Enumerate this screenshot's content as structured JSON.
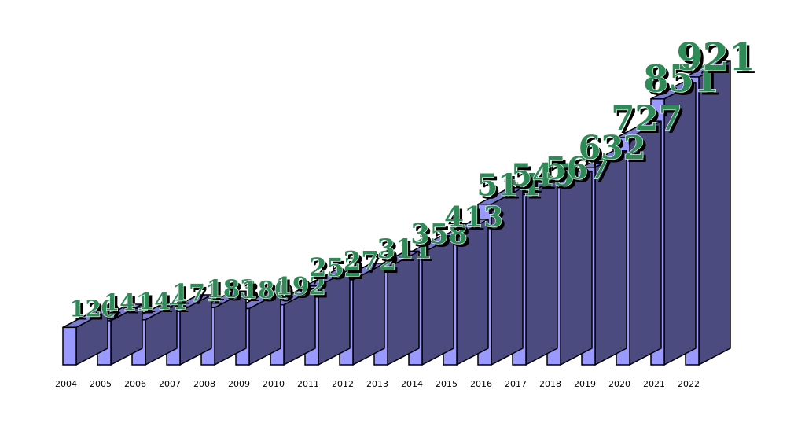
{
  "colors": {
    "bar_front": "#9999ff",
    "bar_side": "#4b4b80",
    "bar_top": "#7b7bd0",
    "value_label": "#2e8b57",
    "value_shadow": "#000000",
    "outline": "#000000"
  },
  "chart_data": {
    "type": "bar",
    "style": "3d",
    "title": "",
    "xlabel": "",
    "ylabel": "",
    "grid": false,
    "legend": "none",
    "ylim": [
      0,
      921
    ],
    "categories": [
      "2004",
      "2005",
      "2006",
      "2007",
      "2008",
      "2009",
      "2010",
      "2011",
      "2012",
      "2013",
      "2014",
      "2015",
      "2016",
      "2017",
      "2018",
      "2019",
      "2020",
      "2021",
      "2022"
    ],
    "values": [
      120,
      141,
      144,
      171,
      183,
      180,
      192,
      252,
      272,
      311,
      358,
      413,
      514,
      545,
      567,
      632,
      727,
      851,
      921
    ],
    "value_labels": [
      "120",
      "141",
      "144",
      "171",
      "183",
      "180",
      "192",
      "252",
      "272",
      "311",
      "358",
      "413",
      "514",
      "545",
      "567",
      "632",
      "727",
      "851",
      "921"
    ]
  }
}
